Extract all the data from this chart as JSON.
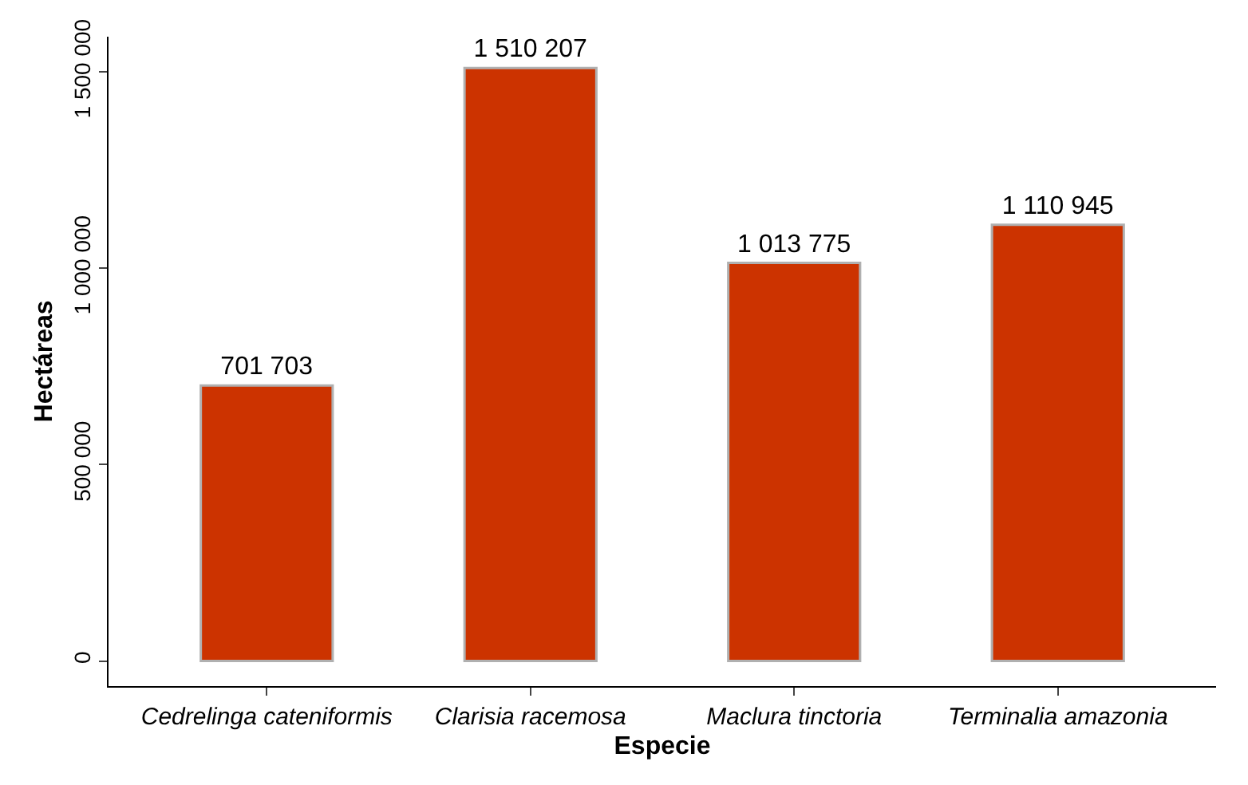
{
  "chart_data": {
    "type": "bar",
    "xlabel": "Especie",
    "ylabel": "Hectáreas",
    "categories": [
      "Cedrelinga cateniformis",
      "Clarisia racemosa",
      "Maclura tinctoria",
      "Terminalia amazonia"
    ],
    "values": [
      701703,
      1510207,
      1013775,
      1110945
    ],
    "value_labels": [
      "701 703",
      "1 510 207",
      "1 013 775",
      "1 110 945"
    ],
    "color": "#cc3300",
    "ylim": [
      -64000,
      1590000
    ],
    "yticks": [
      {
        "value": 0,
        "label": "0"
      },
      {
        "value": 500000,
        "label": "500 000"
      },
      {
        "value": 1000000,
        "label": "1 000 000"
      },
      {
        "value": 1500000,
        "label": "1 500 000"
      }
    ],
    "data_labels": false
  }
}
